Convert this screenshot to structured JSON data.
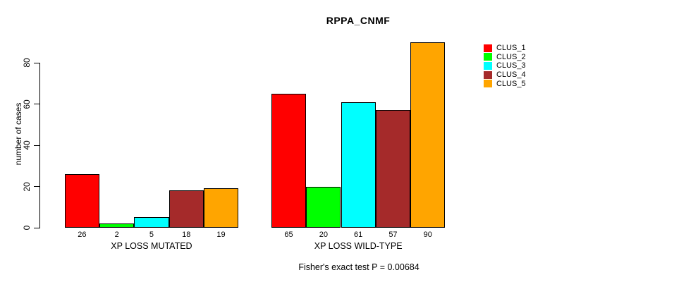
{
  "chart_data": {
    "type": "bar",
    "title": "RPPA_CNMF",
    "ylabel": "number of cases",
    "footer": "Fisher's exact test P = 0.00684",
    "yticks": [
      0,
      20,
      40,
      60,
      80
    ],
    "ylim": [
      0,
      93
    ],
    "grid": false,
    "legend_position": "right",
    "categories": [
      "XP LOSS MUTATED",
      "XP LOSS WILD-TYPE"
    ],
    "series": [
      {
        "name": "CLUS_1",
        "color": "#FF0000",
        "values": [
          26,
          65
        ]
      },
      {
        "name": "CLUS_2",
        "color": "#00FF00",
        "values": [
          2,
          20
        ]
      },
      {
        "name": "CLUS_3",
        "color": "#00FFFF",
        "values": [
          5,
          61
        ]
      },
      {
        "name": "CLUS_4",
        "color": "#A52A2A",
        "values": [
          18,
          57
        ]
      },
      {
        "name": "CLUS_5",
        "color": "#FFA500",
        "values": [
          19,
          90
        ]
      }
    ],
    "bar_value_labels_shown": true
  }
}
